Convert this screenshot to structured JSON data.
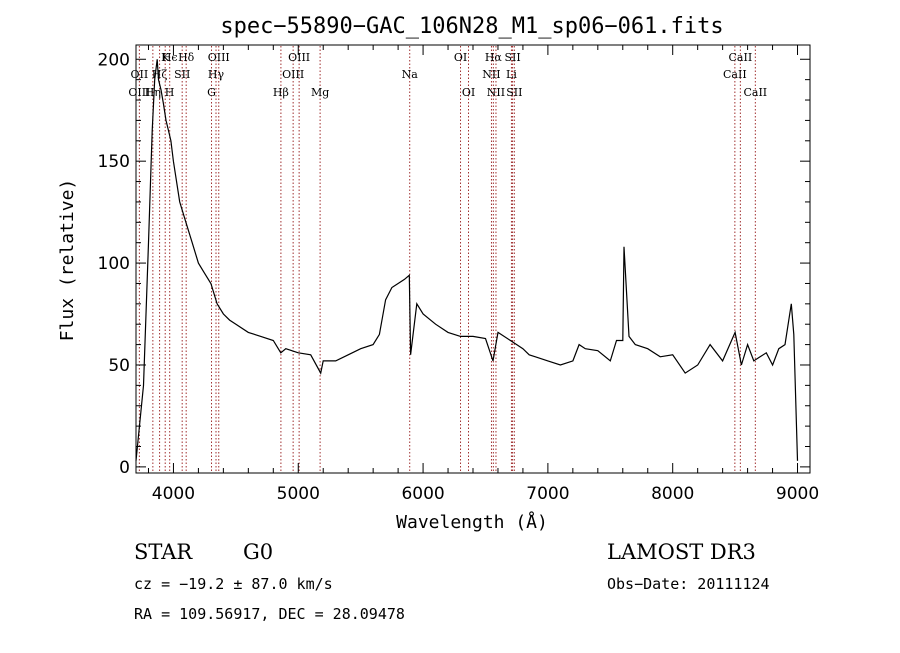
{
  "chart_data": {
    "type": "line",
    "title": "spec−55890−GAC_106N28_M1_sp06−061.fits",
    "xlabel": "Wavelength (Å)",
    "ylabel": "Flux (relative)",
    "xlim": [
      3700,
      9100
    ],
    "ylim": [
      -3,
      207
    ],
    "xticks": [
      4000,
      5000,
      6000,
      7000,
      8000,
      9000
    ],
    "yticks": [
      0,
      50,
      100,
      150,
      200
    ],
    "series": [
      {
        "name": "spectrum",
        "x": [
          3700,
          3760,
          3800,
          3830,
          3850,
          3870,
          3880,
          3900,
          3920,
          3940,
          3960,
          3980,
          4000,
          4050,
          4100,
          4150,
          4200,
          4250,
          4300,
          4350,
          4400,
          4450,
          4500,
          4600,
          4700,
          4800,
          4860,
          4900,
          5000,
          5100,
          5180,
          5200,
          5300,
          5400,
          5500,
          5600,
          5650,
          5700,
          5750,
          5800,
          5850,
          5890,
          5900,
          5950,
          6000,
          6100,
          6200,
          6300,
          6350,
          6400,
          6500,
          6560,
          6600,
          6700,
          6750,
          6800,
          6850,
          6900,
          7000,
          7100,
          7200,
          7250,
          7300,
          7400,
          7500,
          7550,
          7600,
          7610,
          7650,
          7700,
          7800,
          7900,
          8000,
          8100,
          8200,
          8300,
          8400,
          8500,
          8550,
          8600,
          8650,
          8700,
          8750,
          8800,
          8850,
          8900,
          8950,
          8970,
          9000
        ],
        "y": [
          3,
          40,
          110,
          165,
          190,
          200,
          190,
          185,
          178,
          170,
          165,
          160,
          150,
          130,
          120,
          110,
          100,
          95,
          90,
          80,
          75,
          72,
          70,
          66,
          64,
          62,
          56,
          58,
          56,
          55,
          46,
          52,
          52,
          55,
          58,
          60,
          65,
          82,
          88,
          90,
          92,
          94,
          55,
          80,
          75,
          70,
          66,
          64,
          64,
          64,
          63,
          52,
          66,
          62,
          60,
          58,
          55,
          54,
          52,
          50,
          52,
          60,
          58,
          57,
          52,
          62,
          62,
          108,
          64,
          60,
          58,
          54,
          55,
          46,
          50,
          60,
          52,
          66,
          50,
          60,
          52,
          54,
          56,
          50,
          58,
          60,
          80,
          65,
          3
        ]
      }
    ],
    "lines": [
      {
        "label": "Hϵ",
        "wl": 3970,
        "row": 1
      },
      {
        "label": "OII",
        "wl": 3727,
        "row": 2
      },
      {
        "label": "OIII",
        "wl": 3727,
        "row": 3
      },
      {
        "label": "Hζ",
        "wl": 3889,
        "row": 2
      },
      {
        "label": "Hη",
        "wl": 3835,
        "row": 3
      },
      {
        "label": "K",
        "wl": 3934,
        "row": 1
      },
      {
        "label": "H",
        "wl": 3969,
        "row": 3
      },
      {
        "label": "SII",
        "wl": 4070,
        "row": 2
      },
      {
        "label": "Hδ",
        "wl": 4102,
        "row": 1
      },
      {
        "label": "OIII",
        "wl": 4363,
        "row": 1
      },
      {
        "label": "Hγ",
        "wl": 4341,
        "row": 2
      },
      {
        "label": "G",
        "wl": 4305,
        "row": 3
      },
      {
        "label": "OIII",
        "wl": 5007,
        "row": 1
      },
      {
        "label": "OIII",
        "wl": 4959,
        "row": 2
      },
      {
        "label": "Hβ",
        "wl": 4861,
        "row": 3
      },
      {
        "label": "Mg",
        "wl": 5175,
        "row": 3
      },
      {
        "label": "Na",
        "wl": 5893,
        "row": 2
      },
      {
        "label": "OI",
        "wl": 6300,
        "row": 1
      },
      {
        "label": "OI",
        "wl": 6364,
        "row": 3
      },
      {
        "label": "Hα",
        "wl": 6563,
        "row": 1
      },
      {
        "label": "NII",
        "wl": 6548,
        "row": 2
      },
      {
        "label": "NII",
        "wl": 6584,
        "row": 3
      },
      {
        "label": "SII",
        "wl": 6717,
        "row": 1
      },
      {
        "label": "Li",
        "wl": 6708,
        "row": 2
      },
      {
        "label": "SII",
        "wl": 6731,
        "row": 3
      },
      {
        "label": "CaII",
        "wl": 8542,
        "row": 1
      },
      {
        "label": "CaII",
        "wl": 8498,
        "row": 2
      },
      {
        "label": "CaII",
        "wl": 8662,
        "row": 3
      }
    ],
    "line_color": "#a03030"
  },
  "info": {
    "class_label": "STAR",
    "subclass": "G0",
    "survey": "LAMOST DR3",
    "cz": "cz = −19.2 ± 87.0 km/s",
    "obs_date": "Obs−Date: 20111124",
    "coords": "RA = 109.56917, DEC =  28.09478"
  }
}
